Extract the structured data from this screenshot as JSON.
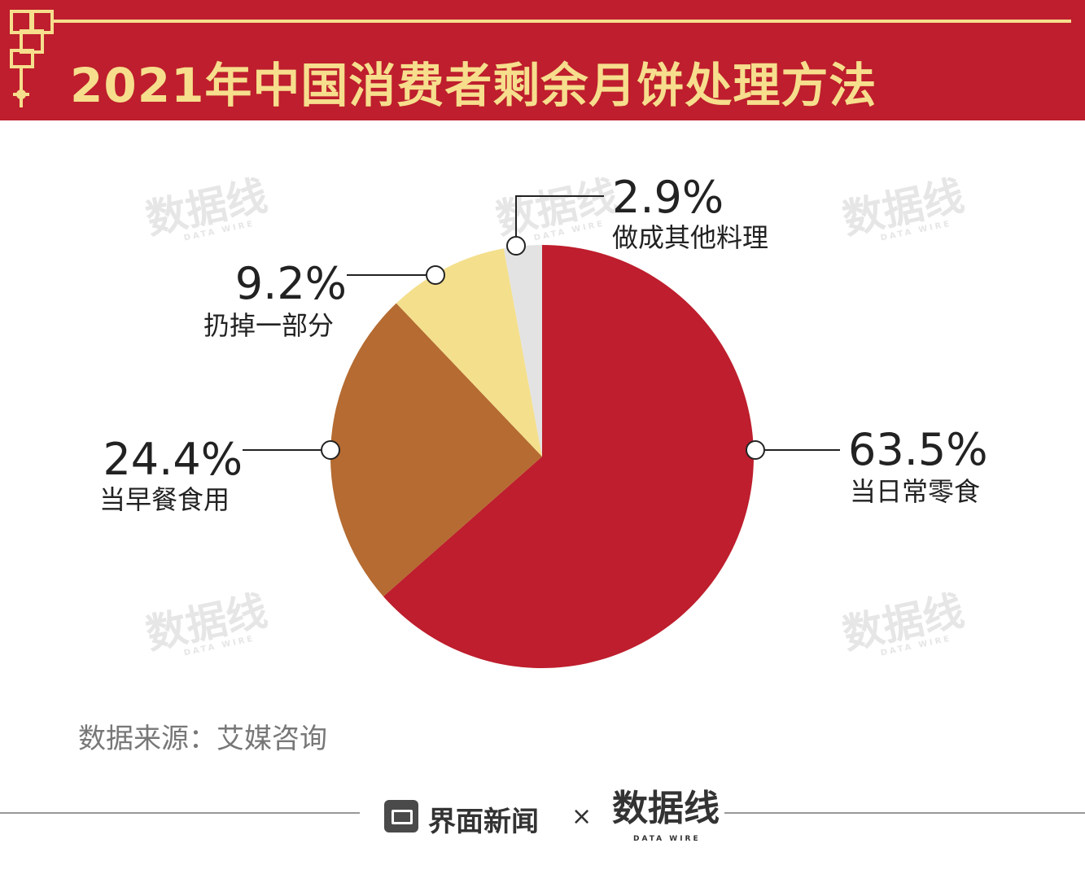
{
  "header": {
    "title": "2021年中国消费者剩余月饼处理方法"
  },
  "watermark": {
    "text": "数据线",
    "sub": "DATA WIRE"
  },
  "colors": {
    "header_bg": "#BE1E2D",
    "title": "#F6DE8D",
    "snack": "#BE1E2D",
    "breakfast": "#B56B31",
    "discard": "#F4DF8C",
    "other": "#E3E3E3"
  },
  "chart_data": {
    "type": "pie",
    "title": "2021年中国消费者剩余月饼处理方法",
    "slices": [
      {
        "label": "当日常零食",
        "value": 63.5,
        "display": "63.5%",
        "color": "#BE1E2D"
      },
      {
        "label": "当早餐食用",
        "value": 24.4,
        "display": "24.4%",
        "color": "#B56B31"
      },
      {
        "label": "扔掉一部分",
        "value": 9.2,
        "display": "9.2%",
        "color": "#F4DF8C"
      },
      {
        "label": "做成其他料理",
        "value": 2.9,
        "display": "2.9%",
        "color": "#E3E3E3"
      }
    ],
    "start": "12 o'clock, clockwise"
  },
  "source": {
    "text": "数据来源：艾媒咨询"
  },
  "footer": {
    "brand": "界面新闻",
    "times": "×",
    "logo": "数据线",
    "logo_sub": "DATA WIRE"
  }
}
